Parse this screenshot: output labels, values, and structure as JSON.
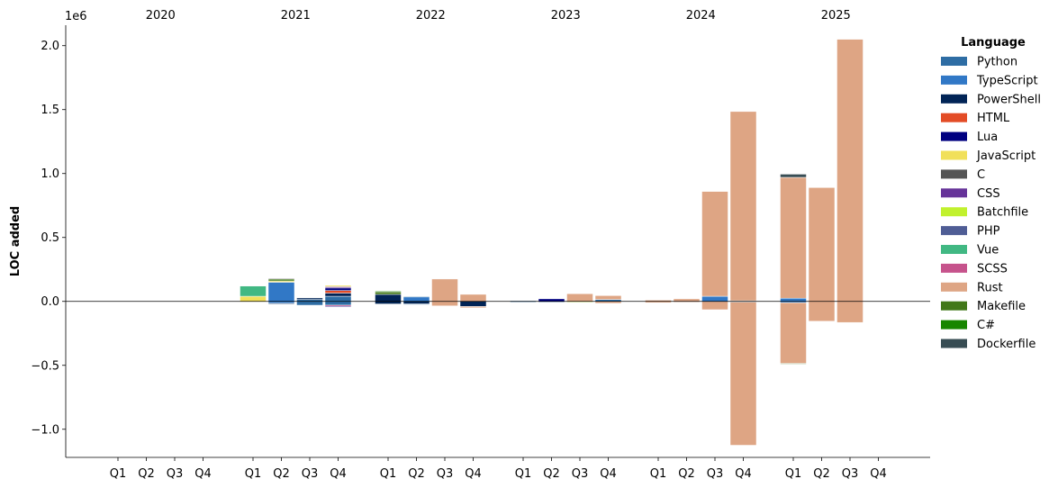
{
  "chart_data": {
    "type": "bar",
    "stacked": true,
    "xlabel": "",
    "ylabel": "LOC added",
    "y_offset_label": "1e6",
    "ylim": [
      -1.22,
      2.16
    ],
    "yticks": [
      -1.0,
      -0.5,
      0.0,
      0.5,
      1.0,
      1.5,
      2.0
    ],
    "ytick_labels": [
      "−1.0",
      "−0.5",
      "0.0",
      "0.5",
      "1.0",
      "1.5",
      "2.0"
    ],
    "years": [
      "2020",
      "2021",
      "2022",
      "2023",
      "2024",
      "2025"
    ],
    "quarters": [
      "Q1",
      "Q2",
      "Q3",
      "Q4"
    ],
    "zero_line": true,
    "grid": false,
    "legend": {
      "title": "Language",
      "placement": "right",
      "entries": [
        {
          "name": "Python",
          "color": "#2e6da4"
        },
        {
          "name": "TypeScript",
          "color": "#3178c6"
        },
        {
          "name": "PowerShell",
          "color": "#012456"
        },
        {
          "name": "HTML",
          "color": "#e34c26"
        },
        {
          "name": "Lua",
          "color": "#000080"
        },
        {
          "name": "JavaScript",
          "color": "#f1e05a"
        },
        {
          "name": "C",
          "color": "#555555"
        },
        {
          "name": "CSS",
          "color": "#663399"
        },
        {
          "name": "Batchfile",
          "color": "#c1f12e"
        },
        {
          "name": "PHP",
          "color": "#4f5d95"
        },
        {
          "name": "Vue",
          "color": "#41b883"
        },
        {
          "name": "SCSS",
          "color": "#c6538c"
        },
        {
          "name": "Rust",
          "color": "#dea584"
        },
        {
          "name": "Makefile",
          "color": "#427819"
        },
        {
          "name": "C#",
          "color": "#178600"
        },
        {
          "name": "Dockerfile",
          "color": "#384d54"
        }
      ]
    },
    "bars": [
      {
        "year": "2021",
        "quarter": "Q1",
        "positive": [
          {
            "lang": "JavaScript",
            "value": 0.04
          },
          {
            "lang": "Vue",
            "value": 0.08
          }
        ],
        "negative": []
      },
      {
        "year": "2021",
        "quarter": "Q2",
        "positive": [
          {
            "lang": "TypeScript",
            "value": 0.15
          },
          {
            "lang": "JavaScript",
            "value": 0.01
          },
          {
            "lang": "Makefile",
            "value": 0.015
          },
          {
            "lang": "C",
            "value": 0.005
          }
        ],
        "negative": [
          {
            "lang": "TypeScript",
            "value": -0.015
          },
          {
            "lang": "PowerShell",
            "value": -0.005
          }
        ]
      },
      {
        "year": "2021",
        "quarter": "Q3",
        "positive": [
          {
            "lang": "Python",
            "value": 0.015
          },
          {
            "lang": "PowerShell",
            "value": 0.012
          }
        ],
        "negative": [
          {
            "lang": "Python",
            "value": -0.03
          }
        ]
      },
      {
        "year": "2021",
        "quarter": "Q4",
        "positive": [
          {
            "lang": "Python",
            "value": 0.04
          },
          {
            "lang": "PowerShell",
            "value": 0.025
          },
          {
            "lang": "HTML",
            "value": 0.02
          },
          {
            "lang": "Lua",
            "value": 0.02
          },
          {
            "lang": "CSS",
            "value": 0.01
          },
          {
            "lang": "JavaScript",
            "value": 0.01
          }
        ],
        "negative": [
          {
            "lang": "Python",
            "value": -0.03
          },
          {
            "lang": "SCSS",
            "value": -0.01
          },
          {
            "lang": "Lua",
            "value": -0.005
          }
        ]
      },
      {
        "year": "2022",
        "quarter": "Q1",
        "positive": [
          {
            "lang": "PowerShell",
            "value": 0.055
          },
          {
            "lang": "Makefile",
            "value": 0.02
          },
          {
            "lang": "C#",
            "value": 0.005
          }
        ],
        "negative": [
          {
            "lang": "PowerShell",
            "value": -0.02
          }
        ]
      },
      {
        "year": "2022",
        "quarter": "Q2",
        "positive": [
          {
            "lang": "TypeScript",
            "value": 0.035
          },
          {
            "lang": "Python",
            "value": 0.005
          }
        ],
        "negative": [
          {
            "lang": "PowerShell",
            "value": -0.02
          },
          {
            "lang": "Python",
            "value": -0.005
          }
        ]
      },
      {
        "year": "2022",
        "quarter": "Q3",
        "positive": [
          {
            "lang": "Rust",
            "value": 0.175
          }
        ],
        "negative": [
          {
            "lang": "Rust",
            "value": -0.035
          }
        ]
      },
      {
        "year": "2022",
        "quarter": "Q4",
        "positive": [
          {
            "lang": "Rust",
            "value": 0.055
          }
        ],
        "negative": [
          {
            "lang": "PowerShell",
            "value": -0.04
          },
          {
            "lang": "Rust",
            "value": -0.01
          }
        ]
      },
      {
        "year": "2023",
        "quarter": "Q1",
        "positive": [
          {
            "lang": "Python",
            "value": 0.005
          }
        ],
        "negative": [
          {
            "lang": "Python",
            "value": -0.005
          }
        ]
      },
      {
        "year": "2023",
        "quarter": "Q2",
        "positive": [
          {
            "lang": "Lua",
            "value": 0.02
          }
        ],
        "negative": [
          {
            "lang": "Python",
            "value": -0.005
          }
        ]
      },
      {
        "year": "2023",
        "quarter": "Q3",
        "positive": [
          {
            "lang": "Rust",
            "value": 0.06
          }
        ],
        "negative": [
          {
            "lang": "Batchfile",
            "value": -0.005
          }
        ]
      },
      {
        "year": "2023",
        "quarter": "Q4",
        "positive": [
          {
            "lang": "Python",
            "value": 0.015
          },
          {
            "lang": "Rust",
            "value": 0.03
          }
        ],
        "negative": [
          {
            "lang": "Rust",
            "value": -0.015
          }
        ]
      },
      {
        "year": "2024",
        "quarter": "Q1",
        "positive": [
          {
            "lang": "Rust",
            "value": 0.01
          }
        ],
        "negative": [
          {
            "lang": "Rust",
            "value": -0.01
          }
        ]
      },
      {
        "year": "2024",
        "quarter": "Q2",
        "positive": [
          {
            "lang": "Rust",
            "value": 0.02
          }
        ],
        "negative": [
          {
            "lang": "Rust",
            "value": -0.005
          }
        ]
      },
      {
        "year": "2024",
        "quarter": "Q3",
        "positive": [
          {
            "lang": "TypeScript",
            "value": 0.04
          },
          {
            "lang": "Rust",
            "value": 0.82
          }
        ],
        "negative": [
          {
            "lang": "Rust",
            "value": -0.065
          }
        ]
      },
      {
        "year": "2024",
        "quarter": "Q4",
        "positive": [
          {
            "lang": "TypeScript",
            "value": 0.005
          },
          {
            "lang": "Rust",
            "value": 1.48
          }
        ],
        "negative": [
          {
            "lang": "Python",
            "value": -0.005
          },
          {
            "lang": "Rust",
            "value": -1.12
          }
        ]
      },
      {
        "year": "2025",
        "quarter": "Q1",
        "positive": [
          {
            "lang": "TypeScript",
            "value": 0.025
          },
          {
            "lang": "Rust",
            "value": 0.945
          },
          {
            "lang": "Dockerfile",
            "value": 0.025
          }
        ],
        "negative": [
          {
            "lang": "TypeScript",
            "value": -0.01
          },
          {
            "lang": "Rust",
            "value": -0.475
          },
          {
            "lang": "Makefile",
            "value": -0.005
          }
        ]
      },
      {
        "year": "2025",
        "quarter": "Q2",
        "positive": [
          {
            "lang": "Rust",
            "value": 0.89
          }
        ],
        "negative": [
          {
            "lang": "Rust",
            "value": -0.155
          }
        ]
      },
      {
        "year": "2025",
        "quarter": "Q3",
        "positive": [
          {
            "lang": "Rust",
            "value": 2.05
          }
        ],
        "negative": [
          {
            "lang": "Rust",
            "value": -0.165
          }
        ]
      }
    ]
  }
}
